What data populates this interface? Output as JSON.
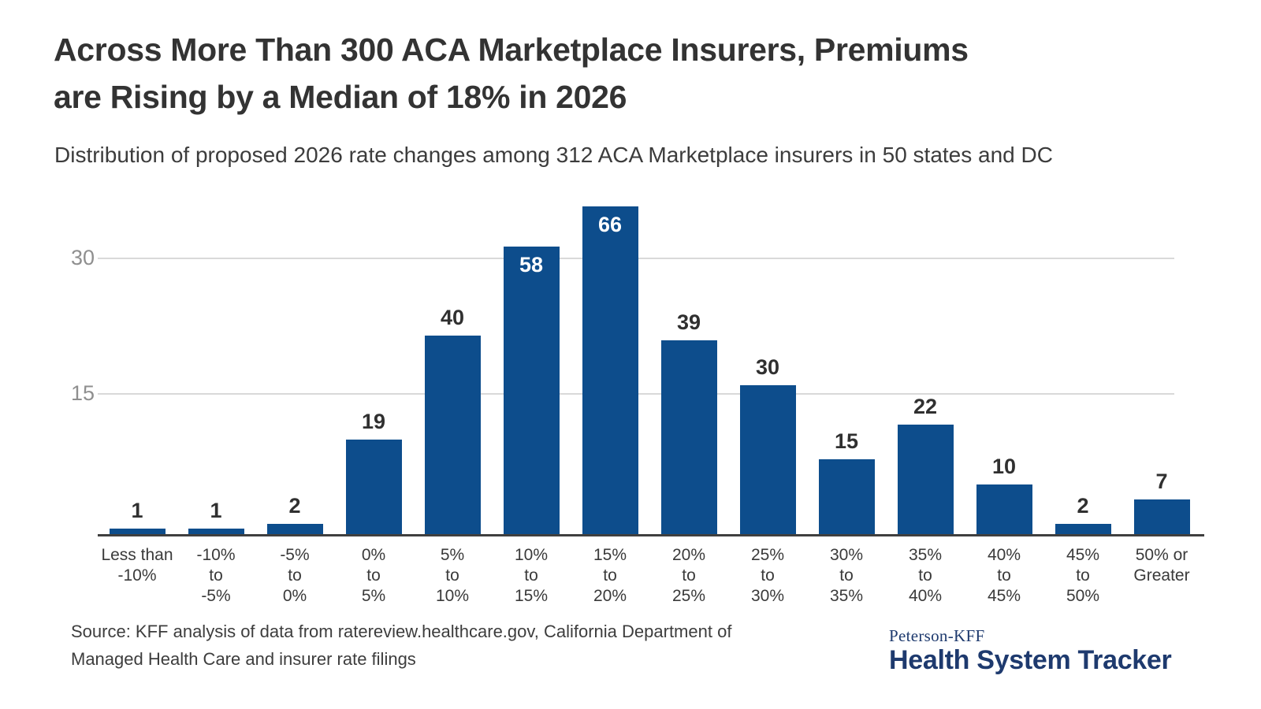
{
  "header": {
    "title_line1": "Across More Than 300 ACA Marketplace Insurers, Premiums",
    "title_line2": "are Rising by a Median of 18% in 2026",
    "subtitle": "Distribution of proposed 2026 rate changes among 312 ACA Marketplace insurers in 50 states and DC"
  },
  "chart_data": {
    "type": "bar",
    "title": "Across More Than 300 ACA Marketplace Insurers, Premiums are Rising by a Median of 18% in 2026",
    "subtitle": "Distribution of proposed 2026 rate changes among 312 ACA Marketplace insurers in 50 states and DC",
    "xlabel": "",
    "ylabel": "",
    "categories": [
      "Less than -10%",
      "-10% to -5%",
      "-5% to 0%",
      "0% to 5%",
      "5% to 10%",
      "10% to 15%",
      "15% to 20%",
      "20% to 25%",
      "25% to 30%",
      "30% to 35%",
      "35% to 40%",
      "40% to 45%",
      "45% to 50%",
      "50% or Greater"
    ],
    "category_lines": [
      [
        "Less than",
        "-10%"
      ],
      [
        "-10%",
        "to",
        "-5%"
      ],
      [
        "-5%",
        "to",
        "0%"
      ],
      [
        "0%",
        "to",
        "5%"
      ],
      [
        "5%",
        "to",
        "10%"
      ],
      [
        "10%",
        "to",
        "15%"
      ],
      [
        "15%",
        "to",
        "20%"
      ],
      [
        "20%",
        "to",
        "25%"
      ],
      [
        "25%",
        "to",
        "30%"
      ],
      [
        "30%",
        "to",
        "35%"
      ],
      [
        "35%",
        "to",
        "40%"
      ],
      [
        "40%",
        "to",
        "45%"
      ],
      [
        "45%",
        "to",
        "50%"
      ],
      [
        "50% or",
        "Greater"
      ]
    ],
    "values": [
      1,
      1,
      2,
      19,
      40,
      58,
      66,
      39,
      30,
      15,
      22,
      10,
      2,
      7
    ],
    "total_insurers": 312,
    "yticks": [
      15,
      30
    ],
    "ylim": [
      0,
      35
    ],
    "grid": true,
    "legend": false,
    "bar_color": "#0d4d8c",
    "value_labels": {
      "inside_indices": [
        5,
        6
      ],
      "inside_color": "#ffffff",
      "outside_color": "#303030"
    }
  },
  "footer": {
    "source_line1": "Source: KFF analysis of data from ratereview.healthcare.gov, California Department of",
    "source_line2": "Managed Health Care and insurer rate filings",
    "logo_top": "Peterson-KFF",
    "logo_main": "Health System Tracker"
  },
  "colors": {
    "bar": "#0d4d8c",
    "logo_navy": "#1e3a6e",
    "title_text": "#333333",
    "axis_line": "#3f3f3f",
    "gridline": "#d9d9d9",
    "ytick_text": "#8f8f8f"
  }
}
